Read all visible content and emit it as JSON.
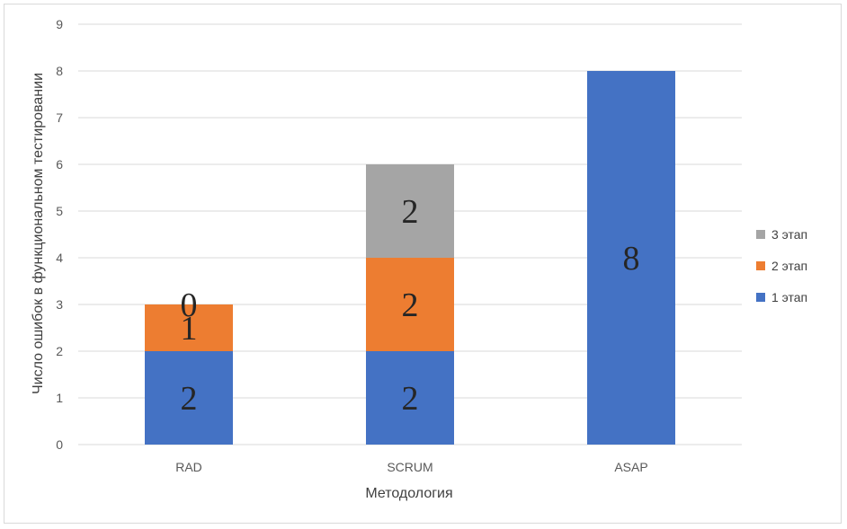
{
  "chart_data": {
    "type": "bar",
    "stacked": true,
    "categories": [
      "RAD",
      "SCRUM",
      "ASAP"
    ],
    "series": [
      {
        "name": "1 этап",
        "values": [
          2,
          2,
          8
        ],
        "color": "#4472C4"
      },
      {
        "name": "2 этап",
        "values": [
          1,
          2,
          0
        ],
        "color": "#ED7D31"
      },
      {
        "name": "3 этап",
        "values": [
          0,
          2,
          0
        ],
        "color": "#A5A5A5"
      }
    ],
    "data_labels": [
      [
        "2",
        "2",
        "8"
      ],
      [
        "1",
        "2",
        ""
      ],
      [
        "0",
        "2",
        ""
      ]
    ],
    "title": "",
    "xlabel": "Методология",
    "ylabel": "Число ошибок в функциональном тестировании",
    "ylim": [
      0,
      9
    ],
    "yticks": [
      0,
      1,
      2,
      3,
      4,
      5,
      6,
      7,
      8,
      9
    ],
    "grid": true,
    "legend_position": "right",
    "gridline_color": "#d9d9d9"
  }
}
